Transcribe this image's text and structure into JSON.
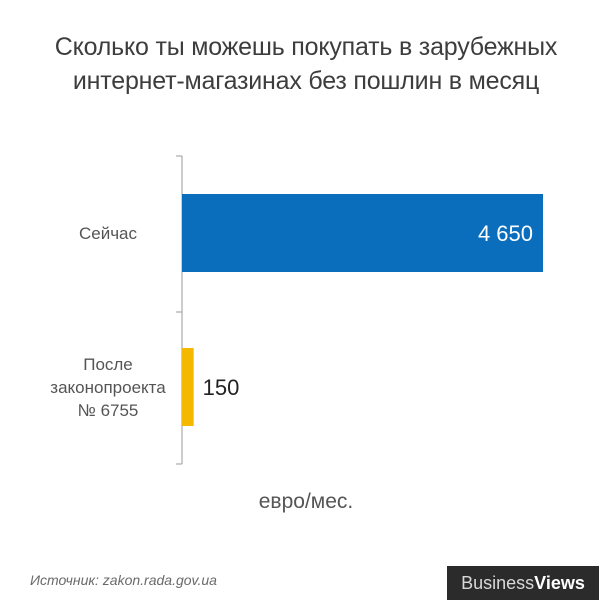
{
  "title_lines": [
    "Сколько ты можешь покупать в зарубежных",
    "интернет-магазинах без пошлин в месяц"
  ],
  "unit_label": "евро/мес.",
  "source": "Источник: zakon.rada.gov.ua",
  "logo": {
    "part1": "Business",
    "part2": "Views"
  },
  "colors": {
    "bar_now": "#0a6ebd",
    "bar_after": "#f5b800",
    "axis": "#999999"
  },
  "chart_data": {
    "type": "bar",
    "orientation": "horizontal",
    "categories": [
      {
        "lines": [
          "Сейчас"
        ]
      },
      {
        "lines": [
          "После",
          "законопроекта",
          "№ 6755"
        ]
      }
    ],
    "values": [
      4650,
      150
    ],
    "value_labels": [
      "4 650",
      "150"
    ],
    "title": "Сколько ты можешь покупать в зарубежных интернет-магазинах без пошлин в месяц",
    "xlabel": "евро/мес.",
    "ylabel": "",
    "xlim": [
      0,
      4650
    ],
    "grid": false,
    "legend": "none"
  }
}
